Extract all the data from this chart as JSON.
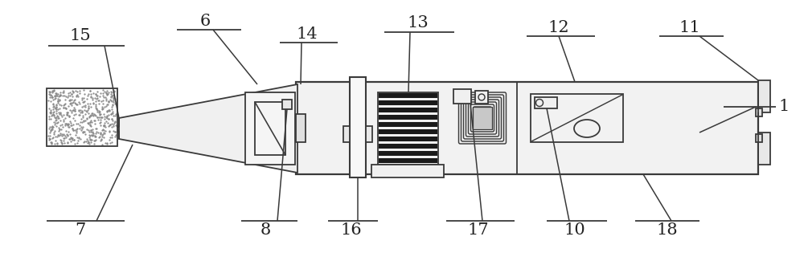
{
  "bg_color": "#ffffff",
  "line_color": "#3a3a3a",
  "figsize": [
    10.0,
    3.25
  ],
  "dpi": 100,
  "label_fontsize": 15,
  "label_color": "#222222"
}
